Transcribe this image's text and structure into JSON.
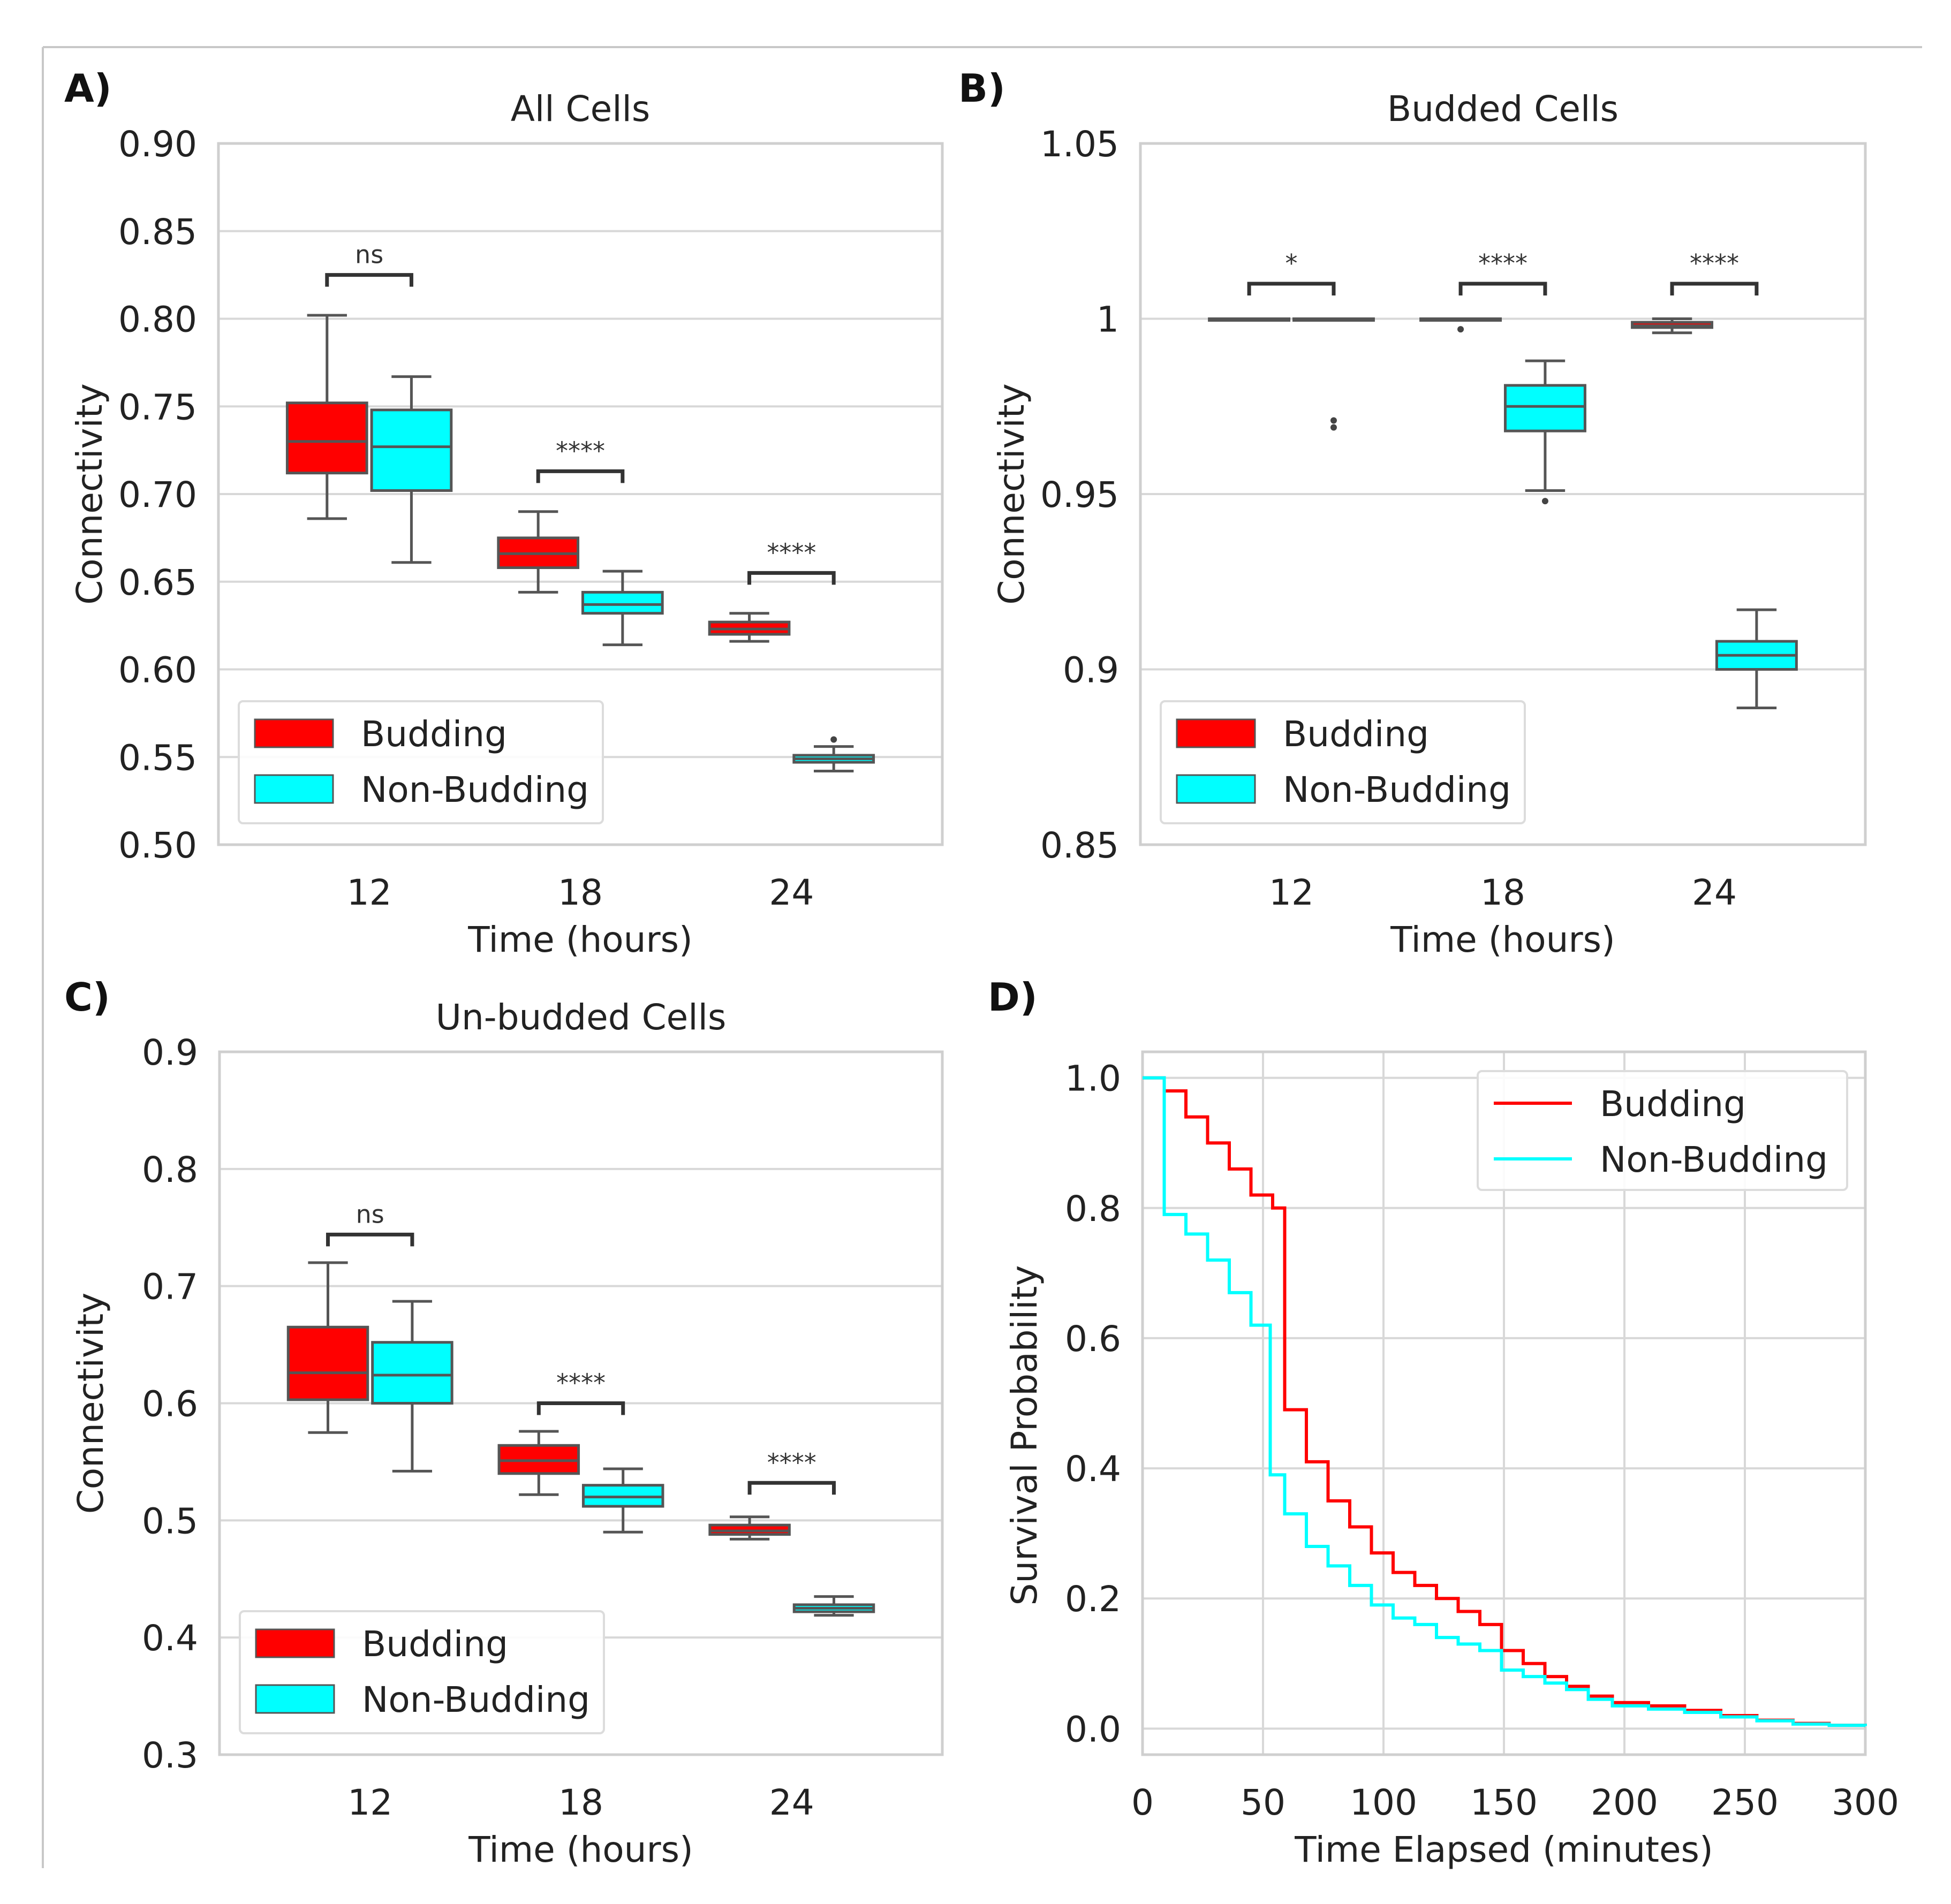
{
  "colors": {
    "budding": "#ff0000",
    "non_budding": "#00ffff",
    "grid": "#d8d8d8",
    "frame": "#cfcfcf",
    "box_edge": "#555555"
  },
  "chart_data": [
    {
      "type": "box",
      "panel_label": "A)",
      "title": "All Cells",
      "xlabel": "Time (hours)",
      "ylabel": "Connectivity",
      "categories": [
        "12",
        "18",
        "24"
      ],
      "ylim": [
        0.5,
        0.9
      ],
      "yticks": [
        "0.50",
        "0.55",
        "0.60",
        "0.65",
        "0.70",
        "0.75",
        "0.80",
        "0.85",
        "0.90"
      ],
      "ytick_values": [
        0.5,
        0.55,
        0.6,
        0.65,
        0.7,
        0.75,
        0.8,
        0.85,
        0.9
      ],
      "grid": true,
      "legend": {
        "placement": "lower-left",
        "entries": [
          "Budding",
          "Non-Budding"
        ]
      },
      "series": [
        {
          "name": "Budding",
          "color": "#ff0000",
          "boxes": [
            {
              "whislo": 0.686,
              "q1": 0.712,
              "med": 0.73,
              "q3": 0.752,
              "whishi": 0.802
            },
            {
              "whislo": 0.644,
              "q1": 0.658,
              "med": 0.666,
              "q3": 0.675,
              "whishi": 0.69
            },
            {
              "whislo": 0.616,
              "q1": 0.62,
              "med": 0.623,
              "q3": 0.627,
              "whishi": 0.632
            }
          ]
        },
        {
          "name": "Non-Budding",
          "color": "#00ffff",
          "boxes": [
            {
              "whislo": 0.661,
              "q1": 0.702,
              "med": 0.727,
              "q3": 0.748,
              "whishi": 0.767
            },
            {
              "whislo": 0.614,
              "q1": 0.632,
              "med": 0.637,
              "q3": 0.644,
              "whishi": 0.656
            },
            {
              "whislo": 0.542,
              "q1": 0.547,
              "med": 0.549,
              "q3": 0.551,
              "whishi": 0.556,
              "outliers": [
                0.56
              ]
            }
          ]
        }
      ],
      "annotations": [
        {
          "category": 0,
          "text": "ns",
          "y": 0.825
        },
        {
          "category": 1,
          "text": "****",
          "y": 0.713
        },
        {
          "category": 2,
          "text": "****",
          "y": 0.655
        }
      ]
    },
    {
      "type": "box",
      "panel_label": "B)",
      "title": "Budded Cells",
      "xlabel": "Time (hours)",
      "ylabel": "Connectivity",
      "categories": [
        "12",
        "18",
        "24"
      ],
      "ylim": [
        0.85,
        1.05
      ],
      "yticks": [
        "0.85",
        "0.9",
        "0.95",
        "1",
        "1.05"
      ],
      "ytick_values": [
        0.85,
        0.9,
        0.95,
        1.0,
        1.05
      ],
      "grid": true,
      "legend": {
        "placement": "lower-left",
        "entries": [
          "Budding",
          "Non-Budding"
        ]
      },
      "series": [
        {
          "name": "Budding",
          "color": "#ff0000",
          "boxes": [
            {
              "whislo": 1.0,
              "q1": 1.0,
              "med": 1.0,
              "q3": 1.0,
              "whishi": 1.0
            },
            {
              "whislo": 1.0,
              "q1": 1.0,
              "med": 1.0,
              "q3": 1.0,
              "whishi": 1.0,
              "outliers": [
                0.997
              ]
            },
            {
              "whislo": 0.996,
              "q1": 0.9975,
              "med": 0.998,
              "q3": 0.999,
              "whishi": 1.0
            }
          ]
        },
        {
          "name": "Non-Budding",
          "color": "#00ffff",
          "boxes": [
            {
              "whislo": 1.0,
              "q1": 1.0,
              "med": 1.0,
              "q3": 1.0,
              "whishi": 1.0,
              "outliers": [
                0.969,
                0.971
              ]
            },
            {
              "whislo": 0.951,
              "q1": 0.968,
              "med": 0.975,
              "q3": 0.981,
              "whishi": 0.988,
              "outliers": [
                0.948
              ]
            },
            {
              "whislo": 0.889,
              "q1": 0.9,
              "med": 0.904,
              "q3": 0.908,
              "whishi": 0.917
            }
          ]
        }
      ],
      "annotations": [
        {
          "category": 0,
          "text": "*",
          "y": 1.01
        },
        {
          "category": 1,
          "text": "****",
          "y": 1.01
        },
        {
          "category": 2,
          "text": "****",
          "y": 1.01
        }
      ]
    },
    {
      "type": "box",
      "panel_label": "C)",
      "title": "Un-budded Cells",
      "xlabel": "Time (hours)",
      "ylabel": "Connectivity",
      "categories": [
        "12",
        "18",
        "24"
      ],
      "ylim": [
        0.3,
        0.9
      ],
      "yticks": [
        "0.3",
        "0.4",
        "0.5",
        "0.6",
        "0.7",
        "0.8",
        "0.9"
      ],
      "ytick_values": [
        0.3,
        0.4,
        0.5,
        0.6,
        0.7,
        0.8,
        0.9
      ],
      "grid": true,
      "legend": {
        "placement": "lower-left",
        "entries": [
          "Budding",
          "Non-Budding"
        ]
      },
      "series": [
        {
          "name": "Budding",
          "color": "#ff0000",
          "boxes": [
            {
              "whislo": 0.575,
              "q1": 0.603,
              "med": 0.626,
              "q3": 0.665,
              "whishi": 0.72
            },
            {
              "whislo": 0.522,
              "q1": 0.54,
              "med": 0.551,
              "q3": 0.564,
              "whishi": 0.576
            },
            {
              "whislo": 0.484,
              "q1": 0.488,
              "med": 0.491,
              "q3": 0.496,
              "whishi": 0.503
            }
          ]
        },
        {
          "name": "Non-Budding",
          "color": "#00ffff",
          "boxes": [
            {
              "whislo": 0.542,
              "q1": 0.6,
              "med": 0.624,
              "q3": 0.652,
              "whishi": 0.687
            },
            {
              "whislo": 0.49,
              "q1": 0.512,
              "med": 0.52,
              "q3": 0.53,
              "whishi": 0.544
            },
            {
              "whislo": 0.419,
              "q1": 0.422,
              "med": 0.425,
              "q3": 0.428,
              "whishi": 0.435
            }
          ]
        }
      ],
      "annotations": [
        {
          "category": 0,
          "text": "ns",
          "y": 0.744
        },
        {
          "category": 1,
          "text": "****",
          "y": 0.6
        },
        {
          "category": 2,
          "text": "****",
          "y": 0.532
        }
      ]
    },
    {
      "type": "line",
      "step": true,
      "panel_label": "D)",
      "title": "",
      "xlabel": "Time Elapsed (minutes)",
      "ylabel": "Survival Probability",
      "xlim": [
        0,
        300
      ],
      "ylim": [
        -0.04,
        1.04
      ],
      "xticks": [
        "0",
        "50",
        "100",
        "150",
        "200",
        "250",
        "300"
      ],
      "xtick_values": [
        0,
        50,
        100,
        150,
        200,
        250,
        300
      ],
      "yticks": [
        "0.0",
        "0.2",
        "0.4",
        "0.6",
        "0.8",
        "1.0"
      ],
      "ytick_values": [
        0.0,
        0.2,
        0.4,
        0.6,
        0.8,
        1.0
      ],
      "grid": true,
      "legend": {
        "placement": "top-right",
        "entries": [
          "Budding",
          "Non-Budding"
        ]
      },
      "series": [
        {
          "name": "Budding",
          "color": "#ff0000",
          "x": [
            0,
            9,
            18,
            27,
            36,
            45,
            54,
            59,
            68,
            77,
            86,
            95,
            104,
            113,
            122,
            131,
            140,
            149,
            158,
            167,
            176,
            185,
            195,
            210,
            225,
            240,
            255,
            270,
            285,
            300
          ],
          "y": [
            1.0,
            0.98,
            0.94,
            0.9,
            0.86,
            0.82,
            0.8,
            0.49,
            0.41,
            0.35,
            0.31,
            0.27,
            0.24,
            0.22,
            0.2,
            0.18,
            0.16,
            0.12,
            0.1,
            0.08,
            0.065,
            0.05,
            0.04,
            0.035,
            0.028,
            0.02,
            0.013,
            0.008,
            0.005,
            0.004
          ]
        },
        {
          "name": "Non-Budding",
          "color": "#00ffff",
          "x": [
            0,
            9,
            18,
            27,
            36,
            45,
            53,
            59,
            68,
            77,
            86,
            95,
            104,
            113,
            122,
            131,
            140,
            149,
            158,
            167,
            176,
            185,
            195,
            210,
            225,
            240,
            255,
            270,
            285,
            300
          ],
          "y": [
            1.0,
            0.79,
            0.76,
            0.72,
            0.67,
            0.62,
            0.39,
            0.33,
            0.28,
            0.25,
            0.22,
            0.19,
            0.17,
            0.16,
            0.14,
            0.13,
            0.12,
            0.09,
            0.08,
            0.07,
            0.06,
            0.045,
            0.035,
            0.03,
            0.025,
            0.018,
            0.012,
            0.007,
            0.005,
            0.004
          ]
        }
      ]
    }
  ]
}
